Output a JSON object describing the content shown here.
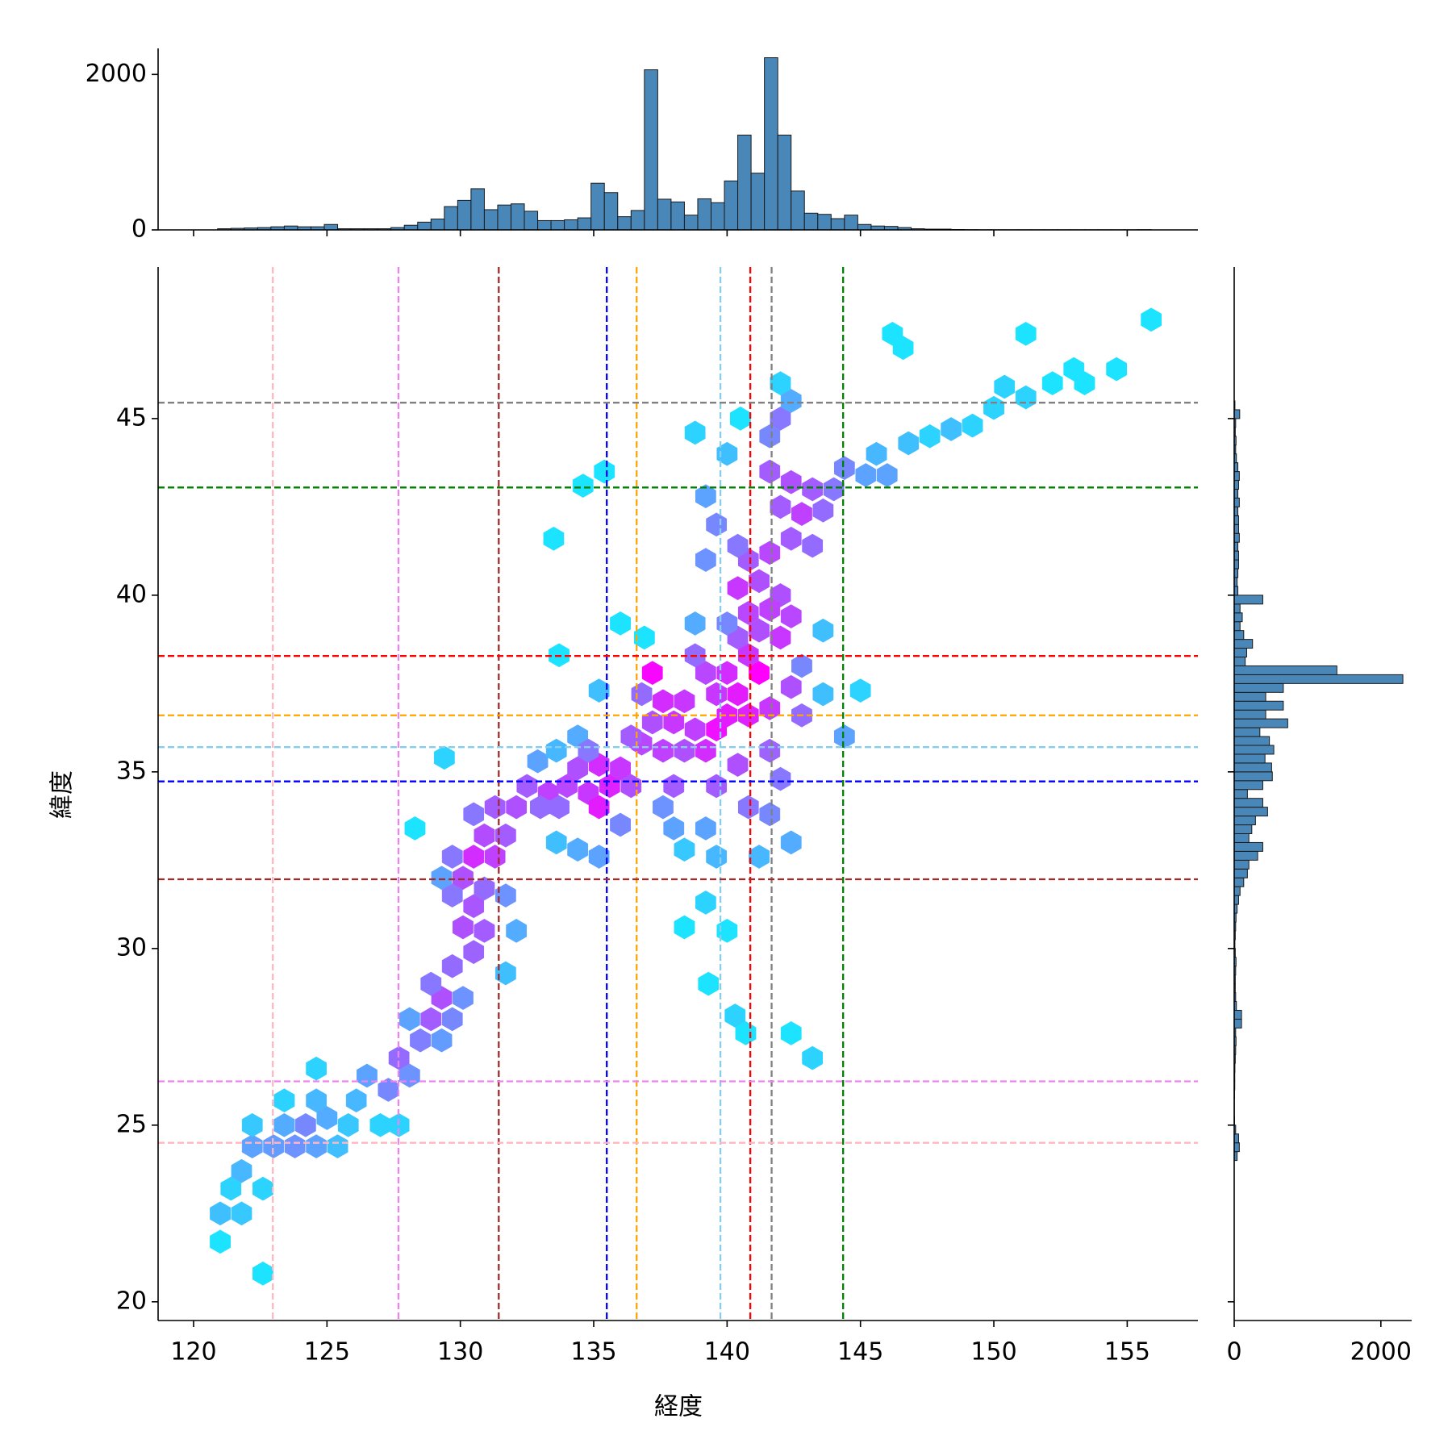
{
  "chart_data": [
    {
      "type": "hexbin",
      "xlabel": "経度",
      "ylabel": "緯度",
      "xlim": [
        118.67,
        157.65
      ],
      "ylim": [
        19.47,
        49.29
      ],
      "xticks": [
        120,
        125,
        130,
        135,
        140,
        145,
        150,
        155
      ],
      "yticks": [
        20,
        25,
        30,
        35,
        40,
        45
      ],
      "cmap": [
        "#00ffff",
        "#ff00ff"
      ],
      "color_scale": "log",
      "x": [
        121.0,
        121.0,
        121.4,
        121.8,
        122.2,
        121.8,
        122.6,
        122.2,
        123.0,
        123.4,
        123.8,
        124.2,
        124.6,
        123.4,
        124.6,
        125.0,
        125.4,
        125.8,
        126.1,
        126.5,
        127.0,
        127.3,
        127.7,
        128.1,
        127.7,
        128.5,
        128.1,
        128.9,
        129.3,
        128.9,
        129.7,
        129.3,
        130.1,
        129.7,
        130.5,
        130.1,
        130.9,
        130.5,
        129.7,
        130.1,
        130.5,
        131.3,
        130.9,
        129.7,
        129.3,
        130.9,
        131.7,
        132.1,
        131.7,
        122.6,
        124.6,
        128.3,
        131.7,
        132.1,
        132.5,
        133.3,
        133.7,
        134.0,
        134.4,
        134.8,
        135.2,
        135.6,
        135.2,
        136.0,
        136.4,
        136.0,
        135.2,
        134.4,
        133.6,
        132.9,
        133.6,
        134.4,
        136.8,
        137.2,
        136.8,
        137.2,
        137.6,
        138.0,
        138.4,
        138.0,
        138.8,
        139.2,
        139.6,
        140.0,
        139.6,
        140.0,
        140.4,
        140.8,
        141.2,
        140.8,
        141.2,
        140.4,
        140.0,
        140.4,
        140.8,
        141.2,
        140.8,
        140.4,
        141.6,
        142.0,
        142.4,
        142.8,
        142.0,
        142.4,
        141.6,
        143.2,
        143.6,
        144.0,
        144.4,
        145.2,
        145.6,
        146.0,
        146.8,
        147.6,
        148.4,
        149.2,
        150.0,
        141.6,
        142.0,
        142.4,
        142.0,
        140.0,
        139.2,
        139.6,
        139.2,
        138.8,
        143.6,
        142.8,
        142.8,
        141.6,
        142.0,
        141.6,
        142.4,
        141.2,
        139.2,
        139.6,
        138.4,
        138.0,
        137.6,
        139.2,
        138.4,
        140.0,
        139.3,
        140.3,
        140.7,
        142.4,
        143.2,
        144.4,
        143.6,
        145.0,
        146.2,
        146.6,
        151.2,
        150.4,
        151.2,
        152.2,
        153.0,
        153.4,
        154.6,
        155.9,
        133.5,
        134.6,
        135.4,
        136.0,
        133.7,
        136.9,
        129.4,
        135.2,
        138.8,
        140.5,
        133.0,
        134.8,
        136.4,
        137.6,
        138.4,
        139.2,
        138.8,
        141.6,
        142.0,
        141.6,
        142.4,
        143.2,
        142.4,
        139.6,
        140.4,
        140.8,
        131.3,
        130.5
      ],
      "y": [
        21.7,
        22.5,
        23.2,
        23.7,
        24.4,
        22.5,
        23.2,
        25.0,
        24.4,
        25.0,
        24.4,
        25.0,
        24.4,
        25.7,
        25.7,
        25.2,
        24.4,
        25.0,
        25.7,
        26.4,
        25.0,
        26.0,
        26.9,
        26.4,
        25.0,
        27.4,
        28.0,
        28.0,
        28.6,
        29.0,
        28.0,
        27.4,
        28.6,
        29.5,
        29.9,
        30.6,
        30.5,
        31.2,
        31.5,
        32.0,
        32.6,
        32.6,
        33.2,
        32.6,
        32.0,
        31.7,
        31.5,
        30.5,
        29.3,
        20.8,
        26.6,
        33.4,
        33.2,
        34.0,
        34.6,
        34.4,
        34.0,
        34.6,
        35.1,
        34.4,
        34.0,
        34.6,
        35.2,
        35.1,
        34.6,
        33.5,
        32.6,
        32.8,
        33.0,
        35.3,
        35.6,
        36.0,
        35.8,
        36.4,
        37.2,
        37.8,
        35.6,
        36.4,
        35.6,
        34.6,
        36.2,
        35.6,
        36.2,
        36.6,
        37.2,
        37.8,
        37.2,
        36.6,
        37.8,
        38.3,
        39.0,
        38.8,
        39.2,
        40.2,
        39.5,
        40.4,
        41.0,
        41.4,
        41.2,
        40.0,
        41.6,
        42.3,
        42.5,
        43.2,
        43.5,
        43.0,
        42.4,
        43.0,
        43.6,
        43.4,
        44.0,
        43.4,
        44.3,
        44.5,
        44.7,
        44.8,
        45.3,
        44.5,
        45.0,
        45.5,
        46.0,
        44.0,
        42.8,
        42.0,
        41.0,
        39.2,
        39.0,
        38.0,
        36.6,
        35.6,
        34.8,
        33.8,
        33.0,
        32.6,
        33.4,
        32.6,
        32.8,
        33.4,
        34.0,
        31.3,
        30.6,
        30.5,
        29.0,
        28.1,
        27.6,
        27.6,
        26.9,
        36.0,
        37.2,
        37.3,
        47.4,
        47.0,
        47.4,
        45.9,
        45.6,
        46.0,
        46.4,
        46.0,
        46.4,
        47.8,
        41.6,
        43.1,
        43.5,
        39.2,
        38.3,
        38.8,
        35.4,
        37.3,
        44.6,
        45.0,
        34.0,
        35.6,
        36.0,
        37.0,
        37.0,
        37.8,
        38.3,
        39.6,
        38.8,
        36.8,
        37.4,
        41.4,
        39.4,
        34.6,
        35.2,
        34.0,
        34.0,
        33.8
      ],
      "values": [
        2,
        5,
        3,
        6,
        10,
        4,
        3,
        4,
        12,
        8,
        15,
        20,
        10,
        3,
        6,
        8,
        5,
        4,
        6,
        10,
        3,
        20,
        40,
        15,
        3,
        25,
        10,
        60,
        80,
        30,
        20,
        12,
        15,
        40,
        50,
        80,
        60,
        70,
        30,
        80,
        200,
        120,
        90,
        30,
        10,
        40,
        15,
        8,
        5,
        2,
        3,
        2,
        60,
        80,
        60,
        120,
        40,
        100,
        80,
        150,
        300,
        250,
        200,
        150,
        80,
        20,
        10,
        8,
        5,
        10,
        6,
        8,
        100,
        80,
        40,
        500,
        120,
        150,
        80,
        60,
        120,
        200,
        400,
        300,
        150,
        200,
        300,
        250,
        600,
        150,
        80,
        60,
        20,
        150,
        100,
        80,
        60,
        30,
        100,
        80,
        60,
        120,
        60,
        80,
        60,
        60,
        40,
        30,
        20,
        10,
        6,
        10,
        5,
        3,
        5,
        3,
        3,
        20,
        30,
        8,
        3,
        5,
        10,
        20,
        15,
        8,
        5,
        20,
        40,
        50,
        30,
        20,
        8,
        6,
        10,
        6,
        4,
        10,
        15,
        3,
        2,
        2,
        2,
        3,
        2,
        2,
        3,
        10,
        5,
        3,
        2,
        2,
        2,
        3,
        3,
        2,
        2,
        2,
        2,
        2,
        2,
        2,
        2,
        2,
        2,
        2,
        3,
        5,
        3,
        2,
        40,
        30,
        60,
        200,
        150,
        100,
        40,
        120,
        150,
        150,
        80,
        40,
        100,
        60,
        80,
        30,
        60,
        30
      ],
      "vlines": [
        {
          "x": 122.97,
          "color": "#ffb6c1"
        },
        {
          "x": 127.68,
          "color": "#ee82ee"
        },
        {
          "x": 131.44,
          "color": "#a52a2a"
        },
        {
          "x": 135.49,
          "color": "#0000ff"
        },
        {
          "x": 136.61,
          "color": "#ffa500"
        },
        {
          "x": 139.75,
          "color": "#87ceeb"
        },
        {
          "x": 140.87,
          "color": "#ff0000"
        },
        {
          "x": 141.67,
          "color": "#808080"
        },
        {
          "x": 144.35,
          "color": "#008000"
        }
      ],
      "hlines": [
        {
          "y": 24.5,
          "color": "#ffb6c1"
        },
        {
          "y": 26.24,
          "color": "#ee82ee"
        },
        {
          "y": 31.96,
          "color": "#a52a2a"
        },
        {
          "y": 34.73,
          "color": "#0000ff"
        },
        {
          "y": 36.6,
          "color": "#ffa500"
        },
        {
          "y": 35.7,
          "color": "#87ceeb"
        },
        {
          "y": 38.28,
          "color": "#ff0000"
        },
        {
          "y": 45.45,
          "color": "#808080"
        },
        {
          "y": 43.05,
          "color": "#008000"
        }
      ]
    },
    {
      "type": "histogram",
      "orientation": "vertical",
      "color": "#4a87b9",
      "ylim": [
        0,
        2335
      ],
      "yticks": [
        0,
        2000
      ],
      "bins": [
        120.9,
        121.4,
        121.9,
        122.4,
        122.9,
        123.4,
        123.9,
        124.4,
        124.9,
        125.4,
        125.9,
        126.4,
        126.9,
        127.4,
        127.9,
        128.4,
        128.9,
        129.4,
        129.9,
        130.4,
        130.9,
        131.4,
        131.9,
        132.4,
        132.9,
        133.4,
        133.9,
        134.4,
        134.9,
        135.4,
        135.9,
        136.4,
        136.9,
        137.4,
        137.9,
        138.4,
        138.9,
        139.4,
        139.9,
        140.4,
        140.9,
        141.4,
        141.9,
        142.4,
        142.9,
        143.4,
        143.9,
        144.4,
        144.9,
        145.4,
        145.9,
        146.4,
        146.9,
        147.4,
        147.9,
        148.4,
        148.9,
        149.4,
        149.9,
        150.4,
        150.9,
        151.4,
        151.9,
        152.4,
        152.9,
        153.4,
        153.9,
        154.4,
        154.9,
        155.4,
        155.9
      ],
      "values": [
        15,
        20,
        25,
        30,
        40,
        50,
        40,
        40,
        70,
        15,
        15,
        15,
        15,
        30,
        60,
        100,
        140,
        300,
        380,
        530,
        260,
        320,
        335,
        240,
        120,
        120,
        130,
        155,
        600,
        480,
        170,
        250,
        2060,
        395,
        360,
        190,
        400,
        350,
        630,
        1220,
        730,
        2215,
        1220,
        500,
        215,
        200,
        145,
        190,
        70,
        50,
        45,
        30,
        15,
        10,
        10,
        5,
        3,
        2,
        2,
        2,
        2,
        2,
        2,
        2,
        2,
        2,
        2,
        2,
        2,
        3
      ]
    },
    {
      "type": "histogram",
      "orientation": "horizontal",
      "color": "#4a87b9",
      "xlim": [
        0,
        2420
      ],
      "xticks": [
        0,
        2000
      ],
      "bins": [
        21,
        21.25,
        21.5,
        21.75,
        22,
        22.25,
        22.5,
        22.75,
        23,
        23.25,
        23.5,
        23.75,
        24,
        24.25,
        24.5,
        24.75,
        25,
        25.25,
        25.5,
        25.75,
        26,
        26.25,
        26.5,
        26.75,
        27,
        27.25,
        27.5,
        27.75,
        28,
        28.25,
        28.5,
        28.75,
        29,
        29.25,
        29.5,
        29.75,
        30,
        30.25,
        30.5,
        30.75,
        31,
        31.25,
        31.5,
        31.75,
        32,
        32.25,
        32.5,
        32.75,
        33,
        33.25,
        33.5,
        33.75,
        34,
        34.25,
        34.5,
        34.75,
        35,
        35.25,
        35.5,
        35.75,
        36,
        36.25,
        36.5,
        36.75,
        37,
        37.25,
        37.5,
        37.75,
        38,
        38.25,
        38.5,
        38.75,
        39,
        39.25,
        39.5,
        39.75,
        40,
        40.25,
        40.5,
        40.75,
        41,
        41.25,
        41.5,
        41.75,
        42,
        42.25,
        42.5,
        42.75,
        43,
        43.25,
        43.5,
        43.75,
        44,
        44.25,
        44.5,
        44.75,
        45,
        45.25,
        45.5
      ],
      "values": [
        0,
        0,
        0,
        0,
        0,
        0,
        0,
        0,
        0,
        0,
        0,
        0,
        40,
        70,
        60,
        20,
        5,
        3,
        3,
        5,
        8,
        8,
        10,
        15,
        20,
        25,
        20,
        100,
        100,
        30,
        20,
        15,
        15,
        20,
        25,
        15,
        10,
        15,
        20,
        25,
        40,
        60,
        80,
        130,
        180,
        200,
        320,
        390,
        200,
        240,
        290,
        455,
        390,
        180,
        390,
        520,
        510,
        420,
        540,
        480,
        350,
        730,
        430,
        670,
        430,
        670,
        2300,
        1400,
        150,
        170,
        250,
        130,
        80,
        110,
        80,
        390,
        50,
        40,
        50,
        60,
        60,
        50,
        70,
        60,
        60,
        50,
        70,
        50,
        60,
        70,
        50,
        30,
        20,
        25,
        15,
        20,
        75,
        10
      ]
    }
  ]
}
